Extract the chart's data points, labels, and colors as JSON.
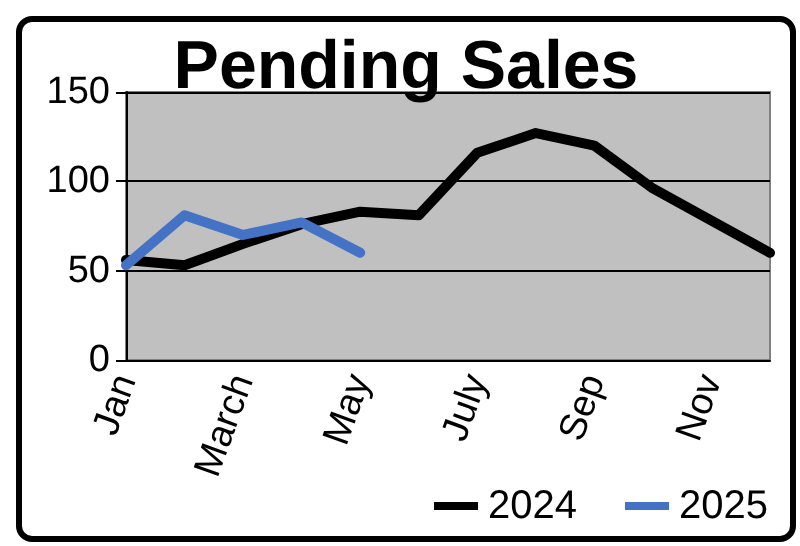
{
  "chart_data": {
    "type": "line",
    "title": "Pending Sales",
    "categories": [
      "Jan",
      null,
      "March",
      null,
      "May",
      null,
      "July",
      null,
      "Sep",
      null,
      "Nov",
      null
    ],
    "series": [
      {
        "name": "2024",
        "color": "#000000",
        "values": [
          56,
          53,
          65,
          76,
          83,
          81,
          116,
          127,
          120,
          96,
          78,
          60
        ]
      },
      {
        "name": "2025",
        "color": "#4472c4",
        "values": [
          53,
          81,
          70,
          77,
          60,
          null,
          null,
          null,
          null,
          null,
          null,
          null
        ]
      }
    ],
    "ylim": [
      0,
      150
    ],
    "yticks": [
      0,
      50,
      100,
      150
    ],
    "grid": "y",
    "legend": "bottom right",
    "marker": "none",
    "line_style": "solid"
  }
}
